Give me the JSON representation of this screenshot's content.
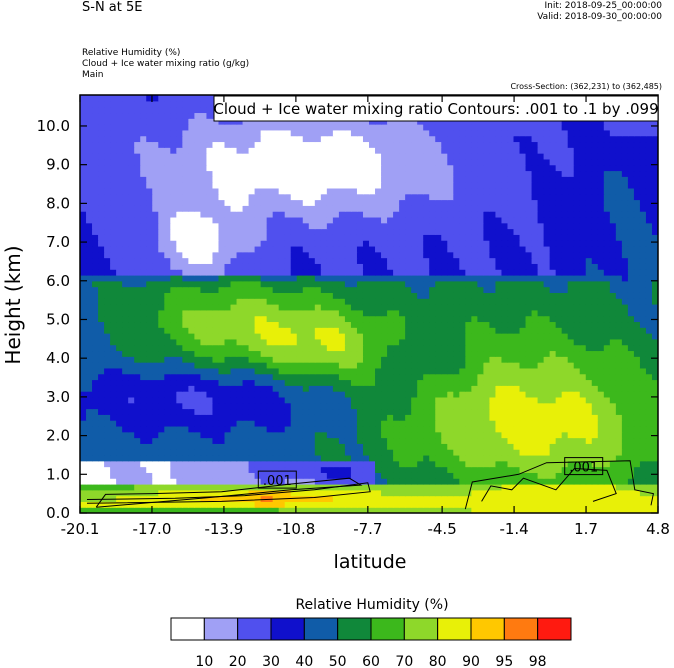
{
  "header": {
    "title": "S-N at 5E",
    "init": "Init: 2018-09-25_00:00:00",
    "valid": "Valid: 2018-09-30_00:00:00",
    "rh_line": "Relative Humidity   (%)",
    "cw_line": "Cloud + Ice water mixing ratio   (g/kg)",
    "main_line": "Main",
    "cross_section": "Cross-Section: (362,231) to (362,485)"
  },
  "chart_data": {
    "type": "heatmap",
    "legend_box": "Cloud + Ice water mixing ratio Contours: .001 to .1 by .099",
    "xlabel": "latitude",
    "ylabel": "Height (km)",
    "xlim": [
      -20.1,
      4.8
    ],
    "ylim": [
      0.0,
      10.8
    ],
    "x_ticks": [
      -20.1,
      -17.0,
      -13.9,
      -10.8,
      -7.7,
      -4.5,
      -1.4,
      1.7,
      4.8
    ],
    "x_tick_labels": [
      "-20.1",
      "-17.0",
      "-13.9",
      "-10.8",
      "-7.7",
      "-4.5",
      "-1.4",
      "1.7",
      "4.8"
    ],
    "y_ticks": [
      0.0,
      1.0,
      2.0,
      3.0,
      4.0,
      5.0,
      6.0,
      7.0,
      8.0,
      9.0,
      10.0
    ],
    "y_tick_labels": [
      "0.0",
      "1.0",
      "2.0",
      "3.0",
      "4.0",
      "5.0",
      "6.0",
      "7.0",
      "8.0",
      "9.0",
      "10.0"
    ],
    "contour_labels": [
      {
        "text": ".001",
        "x": -11.6,
        "y": 0.85
      },
      {
        "text": ".001",
        "x": 1.6,
        "y": 1.2
      }
    ],
    "colorbar": {
      "title": "Relative Humidity  (%)",
      "levels": [
        "10",
        "20",
        "30",
        "40",
        "50",
        "60",
        "70",
        "80",
        "90",
        "95",
        "98"
      ],
      "colors": [
        "#ffffff",
        "#a0a0f5",
        "#5050ee",
        "#1010cc",
        "#105ca8",
        "#10883a",
        "#3cb81c",
        "#8ed82a",
        "#e8f008",
        "#ffc800",
        "#ff7a10",
        "#ff1a10"
      ]
    },
    "field_colors_by_bin": {
      "0": "#ffffff",
      "1": "#a0a0f5",
      "2": "#5050ee",
      "3": "#1010cc",
      "4": "#105ca8",
      "5": "#10883a",
      "6": "#3cb81c",
      "7": "#8ed82a",
      "8": "#e8f008",
      "9": "#ffc800",
      "10": "#ff7a10",
      "11": "#ff1a10"
    }
  }
}
